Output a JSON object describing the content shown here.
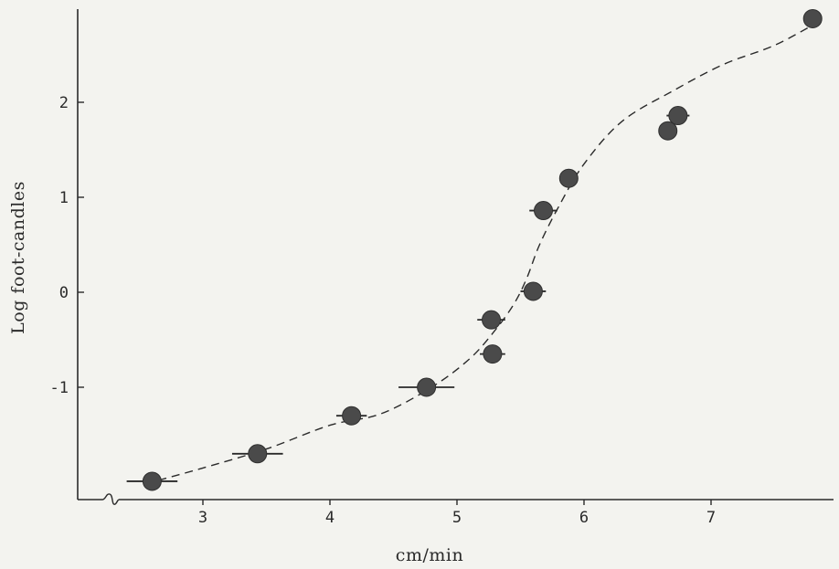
{
  "chart_data": {
    "type": "scatter",
    "title": "",
    "xlabel": "cm/min",
    "ylabel": "Log  foot-candles",
    "xlim": [
      2.3,
      7.9
    ],
    "ylim": [
      -2.1,
      2.95
    ],
    "x_ticks": [
      "3",
      "4",
      "5",
      "6",
      "7"
    ],
    "y_ticks": [
      "2",
      "1",
      "0",
      "-1"
    ],
    "x_ticks_values": [
      3,
      4,
      5,
      6,
      7
    ],
    "y_ticks_values": [
      2,
      1,
      0,
      -1
    ],
    "grid": false,
    "axis_break": "x-axis, near origin",
    "points": [
      {
        "x": 2.6,
        "y": -1.99,
        "xerr": 0.2
      },
      {
        "x": 3.43,
        "y": -1.7,
        "xerr": 0.2
      },
      {
        "x": 4.17,
        "y": -1.3,
        "xerr": 0.12
      },
      {
        "x": 4.76,
        "y": -1.0,
        "xerr": 0.22
      },
      {
        "x": 5.27,
        "y": -0.29,
        "xerr": 0.11
      },
      {
        "x": 5.28,
        "y": -0.65,
        "xerr": 0.1
      },
      {
        "x": 5.6,
        "y": 0.01,
        "xerr": 0.1
      },
      {
        "x": 5.68,
        "y": 0.86,
        "xerr": 0.11
      },
      {
        "x": 5.88,
        "y": 1.2,
        "xerr": 0.07
      },
      {
        "x": 6.66,
        "y": 1.7,
        "xerr": 0.07
      },
      {
        "x": 6.74,
        "y": 1.86,
        "xerr": 0.09
      },
      {
        "x": 7.8,
        "y": 2.88,
        "xerr": 0.05
      }
    ],
    "fit_curve": {
      "style": "dashed",
      "x": [
        2.65,
        3.0,
        3.5,
        4.0,
        4.4,
        4.8,
        5.1,
        5.3,
        5.45,
        5.55,
        5.65,
        5.8,
        6.0,
        6.3,
        6.7,
        7.1,
        7.5,
        7.85
      ],
      "y": [
        -1.98,
        -1.85,
        -1.65,
        -1.4,
        -1.28,
        -1.0,
        -0.7,
        -0.4,
        -0.12,
        0.15,
        0.5,
        0.9,
        1.35,
        1.8,
        2.12,
        2.4,
        2.6,
        2.85
      ]
    },
    "colors": {
      "ink": "#2a2a2a",
      "marker": "#4a4a4a",
      "background": "#f3f3ef"
    }
  }
}
